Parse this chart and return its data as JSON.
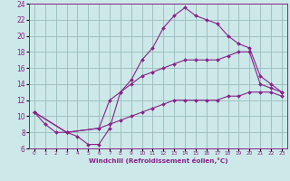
{
  "title": "",
  "xlabel": "Windchill (Refroidissement éolien,°C)",
  "bg_color": "#cce8e8",
  "line_color": "#882288",
  "grid_color": "#99bbbb",
  "line1_x": [
    0,
    1,
    2,
    3,
    4,
    5,
    6,
    7,
    8,
    9,
    10,
    11,
    12,
    13,
    14,
    15,
    16,
    17,
    18,
    19,
    20,
    21,
    22,
    23
  ],
  "line1_y": [
    10.5,
    9.0,
    8.0,
    8.0,
    7.5,
    6.5,
    6.5,
    8.5,
    13.0,
    14.5,
    17.0,
    18.5,
    21.0,
    22.5,
    23.5,
    22.5,
    22.0,
    21.5,
    20.0,
    19.0,
    18.5,
    15.0,
    14.0,
    13.0
  ],
  "line2_x": [
    0,
    3,
    6,
    7,
    8,
    9,
    10,
    11,
    12,
    13,
    14,
    15,
    16,
    17,
    18,
    19,
    20,
    21,
    22,
    23
  ],
  "line2_y": [
    10.5,
    8.0,
    8.5,
    12.0,
    13.0,
    14.0,
    15.0,
    15.5,
    16.0,
    16.5,
    17.0,
    17.0,
    17.0,
    17.0,
    17.5,
    18.0,
    18.0,
    14.0,
    13.5,
    13.0
  ],
  "line3_x": [
    0,
    3,
    6,
    7,
    8,
    9,
    10,
    11,
    12,
    13,
    14,
    15,
    16,
    17,
    18,
    19,
    20,
    21,
    22,
    23
  ],
  "line3_y": [
    10.5,
    8.0,
    8.5,
    9.0,
    9.5,
    10.0,
    10.5,
    11.0,
    11.5,
    12.0,
    12.0,
    12.0,
    12.0,
    12.0,
    12.5,
    12.5,
    13.0,
    13.0,
    13.0,
    12.5
  ],
  "xlim": [
    -0.5,
    23.5
  ],
  "ylim": [
    6,
    24
  ],
  "xticks": [
    0,
    1,
    2,
    3,
    4,
    5,
    6,
    7,
    8,
    9,
    10,
    11,
    12,
    13,
    14,
    15,
    16,
    17,
    18,
    19,
    20,
    21,
    22,
    23
  ],
  "yticks": [
    6,
    8,
    10,
    12,
    14,
    16,
    18,
    20,
    22,
    24
  ]
}
